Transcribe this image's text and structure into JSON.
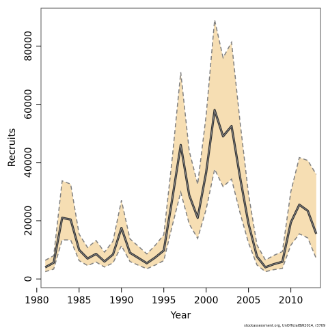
{
  "chart_data": {
    "type": "area",
    "title": "",
    "xlabel": "Year",
    "ylabel": "Recruits",
    "xlim": [
      1980.5,
      2013.5
    ],
    "ylim": [
      -3000,
      93000
    ],
    "xticks": [
      1980,
      1985,
      1990,
      1995,
      2000,
      2005,
      2010
    ],
    "yticks": [
      0,
      20000,
      40000,
      60000,
      80000
    ],
    "grid": false,
    "legend": "none",
    "footnote": "stockassessment.org, UnOfficialBW2014, r3709",
    "colors": {
      "band": "#f6deb3",
      "bound": "#7f7f7f",
      "estimate": "#333333",
      "frame": "#555555"
    },
    "x": [
      1981,
      1982,
      1983,
      1984,
      1985,
      1986,
      1987,
      1988,
      1989,
      1990,
      1991,
      1992,
      1993,
      1994,
      1995,
      1996,
      1997,
      1998,
      1999,
      2000,
      2001,
      2002,
      2003,
      2004,
      2005,
      2006,
      2007,
      2008,
      2009,
      2010,
      2011,
      2012,
      2013
    ],
    "series": [
      {
        "name": "",
        "role": "estimate",
        "values": [
          4000,
          5600,
          21000,
          20400,
          10000,
          7000,
          8600,
          6000,
          8400,
          17500,
          9000,
          7200,
          5400,
          7400,
          9800,
          27500,
          46000,
          28800,
          21000,
          36600,
          58000,
          49000,
          52500,
          35000,
          19000,
          7700,
          4000,
          5100,
          5900,
          19400,
          25500,
          23400,
          15500
        ]
      },
      {
        "name": "",
        "role": "lower",
        "values": [
          2500,
          3400,
          13400,
          13400,
          6300,
          4600,
          5800,
          4100,
          5500,
          11400,
          6000,
          4700,
          3500,
          4800,
          6300,
          18300,
          29800,
          18900,
          13900,
          23900,
          37700,
          31700,
          34300,
          22700,
          12400,
          4800,
          2500,
          3200,
          3600,
          11600,
          15500,
          14100,
          7000
        ]
      },
      {
        "name": "",
        "role": "upper",
        "values": [
          6400,
          8000,
          33700,
          32600,
          15400,
          10800,
          13200,
          9200,
          13000,
          27000,
          13800,
          11200,
          8600,
          11600,
          15200,
          41600,
          71000,
          44000,
          32500,
          56200,
          89000,
          76000,
          81300,
          54000,
          29200,
          11700,
          6500,
          8100,
          9400,
          30000,
          41700,
          40700,
          35900
        ]
      }
    ]
  }
}
